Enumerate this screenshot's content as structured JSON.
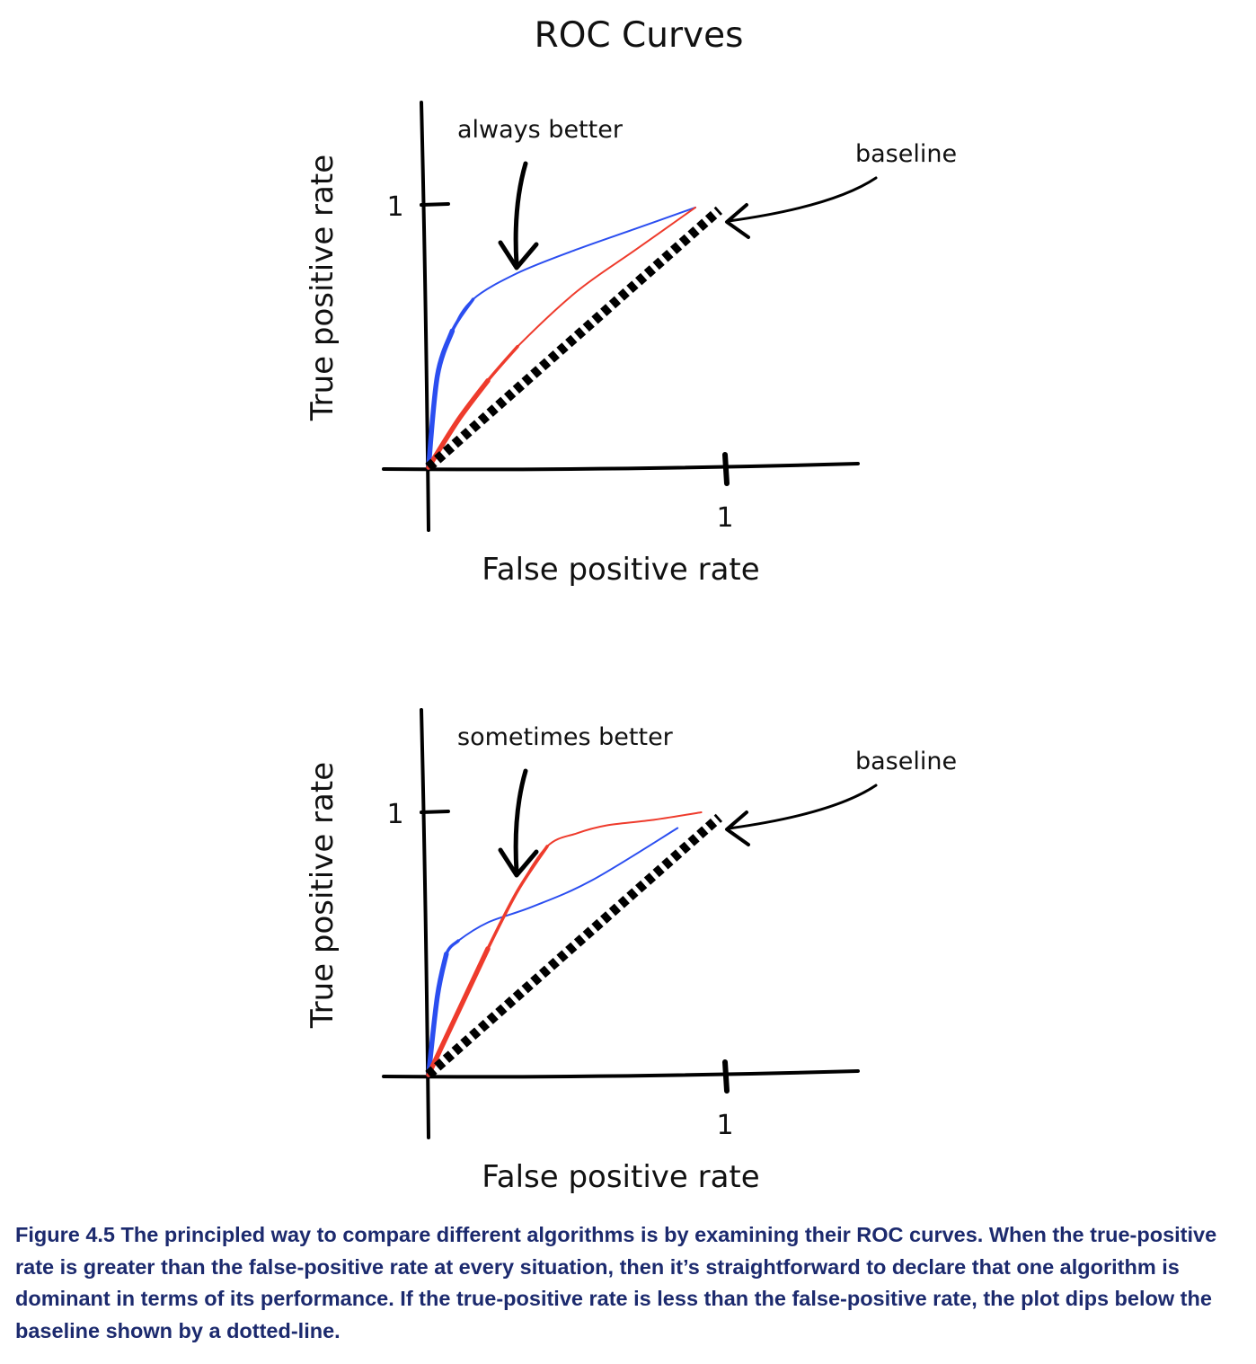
{
  "title": "ROC Curves",
  "caption": "Figure 4.5 The principled way to compare different algorithms is by examining their ROC curves. When the true-positive rate is greater than the false-positive rate at every situation, then it’s straightforward to declare that one algorithm is dominant in terms of its performance. If the true-positive rate is less than the false-positive rate, the plot dips below the baseline shown by a dotted-line.",
  "colors": {
    "blue": "#2b4ef0",
    "red": "#ee3b2c",
    "baseline": "#000000",
    "caption": "#1c2a6e"
  },
  "chart_data": [
    {
      "type": "line",
      "xlabel": "False positive rate",
      "ylabel": "True positive rate",
      "xtick_label": "1",
      "ytick_label": "1",
      "xlim": [
        0,
        1
      ],
      "ylim": [
        0,
        1
      ],
      "annotation": "always better",
      "baseline_label": "baseline",
      "series": [
        {
          "color": "blue",
          "x": [
            0,
            0.03,
            0.08,
            0.15,
            0.3,
            0.5,
            0.7,
            0.9
          ],
          "y": [
            0,
            0.35,
            0.52,
            0.64,
            0.74,
            0.83,
            0.91,
            0.99
          ]
        },
        {
          "color": "red",
          "x": [
            0,
            0.1,
            0.2,
            0.3,
            0.5,
            0.7,
            0.9
          ],
          "y": [
            0,
            0.18,
            0.33,
            0.46,
            0.67,
            0.83,
            0.99
          ]
        },
        {
          "color": "baseline",
          "style": "dotted",
          "x": [
            0,
            0.98
          ],
          "y": [
            0,
            0.98
          ]
        }
      ]
    },
    {
      "type": "line",
      "xlabel": "False positive rate",
      "ylabel": "True positive rate",
      "xtick_label": "1",
      "ytick_label": "1",
      "xlim": [
        0,
        1
      ],
      "ylim": [
        0,
        1
      ],
      "annotation": "sometimes better",
      "baseline_label": "baseline",
      "series": [
        {
          "color": "blue",
          "x": [
            0,
            0.03,
            0.06,
            0.1,
            0.2,
            0.35,
            0.55,
            0.84
          ],
          "y": [
            0,
            0.3,
            0.46,
            0.51,
            0.58,
            0.64,
            0.74,
            0.94
          ]
        },
        {
          "color": "red",
          "x": [
            0,
            0.1,
            0.2,
            0.3,
            0.4,
            0.5,
            0.6,
            0.75,
            0.92
          ],
          "y": [
            0,
            0.24,
            0.48,
            0.7,
            0.87,
            0.92,
            0.95,
            0.97,
            1.0
          ]
        },
        {
          "color": "baseline",
          "style": "dotted",
          "x": [
            0,
            0.98
          ],
          "y": [
            0,
            0.98
          ]
        }
      ]
    }
  ]
}
